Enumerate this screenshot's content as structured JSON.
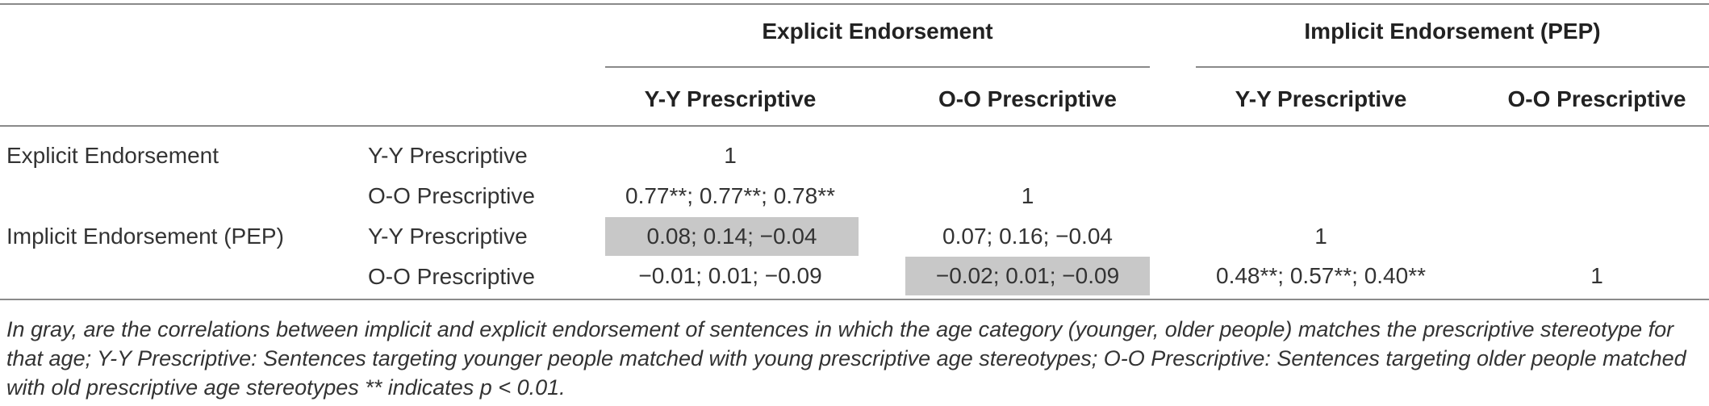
{
  "headers": {
    "explicit_group": "Explicit Endorsement",
    "implicit_group": "Implicit Endorsement (PEP)",
    "columns": [
      "Y-Y Prescriptive",
      "O-O Prescriptive",
      "Y-Y Prescriptive",
      "O-O Prescriptive"
    ]
  },
  "rows": [
    {
      "group": "Explicit Endorsement",
      "sub": "Y-Y Prescriptive",
      "cells": [
        "1",
        "",
        "",
        ""
      ]
    },
    {
      "group": "",
      "sub": "O-O Prescriptive",
      "cells": [
        "0.77**; 0.77**; 0.78**",
        "1",
        "",
        ""
      ]
    },
    {
      "group": "Implicit Endorsement (PEP)",
      "sub": "Y-Y Prescriptive",
      "cells": [
        "0.08; 0.14; −0.04",
        "0.07; 0.16; −0.04",
        "1",
        ""
      ]
    },
    {
      "group": "",
      "sub": "O-O Prescriptive",
      "cells": [
        "−0.01; 0.01; −0.09",
        "−0.02; 0.01; −0.09",
        "0.48**; 0.57**; 0.40**",
        "1"
      ]
    }
  ],
  "footnote": "In gray, are the correlations between implicit and explicit endorsement of sentences in which the age category (younger, older people) matches the prescriptive stereotype for that age; Y-Y Prescriptive: Sentences targeting younger people matched with young prescriptive age stereotypes; O-O Prescriptive: Sentences targeting older people matched with old prescriptive age stereotypes ** indicates p < 0.01.",
  "colors": {
    "shade": "#c8c8c8",
    "rule": "#8a8a8a",
    "text": "#333333"
  }
}
